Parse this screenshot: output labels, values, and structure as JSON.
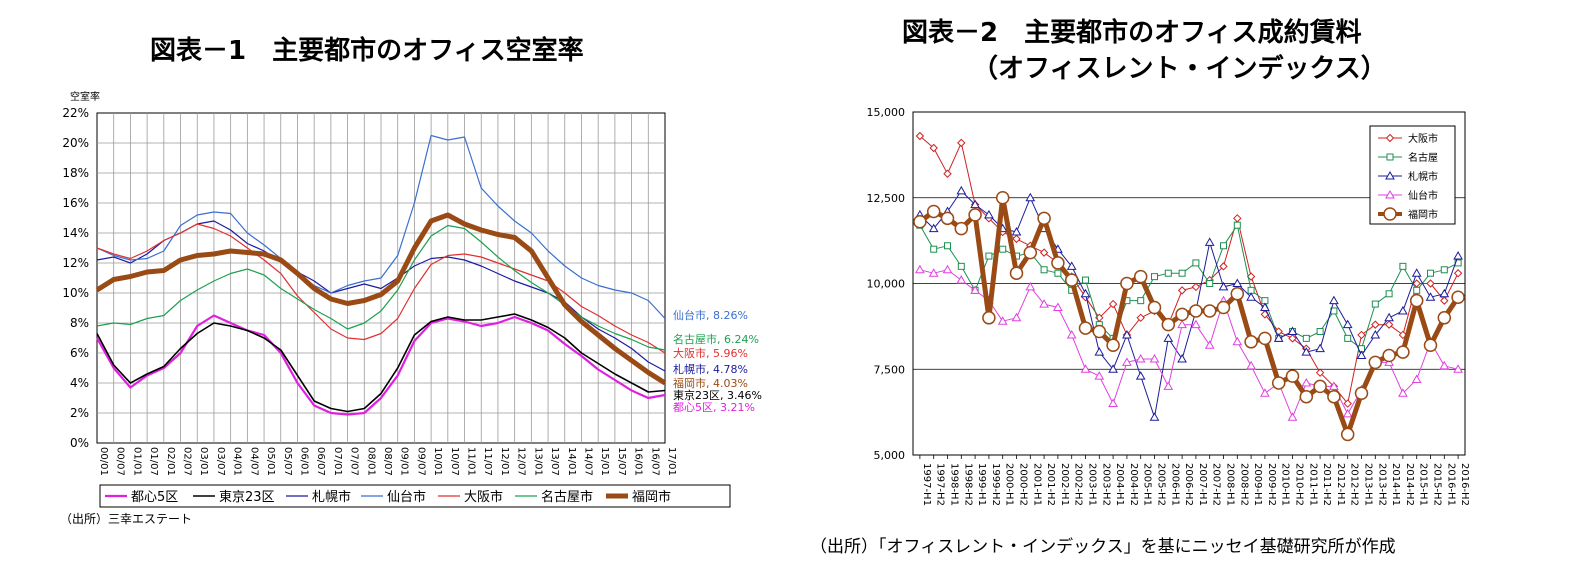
{
  "panel1": {
    "title": "図表－1　主要都市のオフィス空室率",
    "source": "（出所）三幸エステート",
    "chart_data": {
      "type": "line",
      "title": "図表－1　主要都市のオフィス空室率",
      "ylabel": "空室率",
      "ylim": [
        0,
        22
      ],
      "yticks": [
        "0%",
        "2%",
        "4%",
        "6%",
        "8%",
        "10%",
        "12%",
        "14%",
        "16%",
        "18%",
        "20%",
        "22%"
      ],
      "xticks": [
        "00/01",
        "00/07",
        "01/01",
        "01/07",
        "02/01",
        "02/07",
        "03/01",
        "03/07",
        "04/01",
        "04/07",
        "05/01",
        "05/07",
        "06/01",
        "06/07",
        "07/01",
        "07/07",
        "08/01",
        "08/07",
        "09/01",
        "09/07",
        "10/01",
        "10/07",
        "11/01",
        "11/07",
        "12/01",
        "12/07",
        "13/01",
        "13/07",
        "14/01",
        "14/07",
        "15/01",
        "15/07",
        "16/01",
        "16/07",
        "17/01"
      ],
      "x": [
        2000.0,
        2000.5,
        2001.0,
        2001.5,
        2002.0,
        2002.5,
        2003.0,
        2003.5,
        2004.0,
        2004.5,
        2005.0,
        2005.5,
        2006.0,
        2006.5,
        2007.0,
        2007.5,
        2008.0,
        2008.5,
        2009.0,
        2009.5,
        2010.0,
        2010.5,
        2011.0,
        2011.5,
        2012.0,
        2012.5,
        2013.0,
        2013.5,
        2014.0,
        2014.5,
        2015.0,
        2015.5,
        2016.0,
        2016.5,
        2017.0
      ],
      "grid": true,
      "legend": "bottom",
      "series": [
        {
          "name": "都心5区",
          "color": "#e020e0",
          "width": 2.2,
          "end_label": "都心5区, 3.21%",
          "values": [
            7.0,
            5.0,
            3.7,
            4.5,
            5.0,
            6.0,
            7.8,
            8.5,
            8.0,
            7.5,
            7.2,
            6.0,
            4.0,
            2.5,
            2.0,
            1.9,
            2.0,
            3.0,
            4.5,
            6.8,
            8.0,
            8.3,
            8.1,
            7.8,
            8.0,
            8.4,
            8.0,
            7.5,
            6.6,
            5.8,
            4.9,
            4.2,
            3.5,
            3.0,
            3.2
          ]
        },
        {
          "name": "東京23区",
          "color": "#000000",
          "width": 1.6,
          "end_label": "東京23区, 3.46%",
          "values": [
            7.3,
            5.2,
            4.0,
            4.6,
            5.1,
            6.3,
            7.3,
            8.0,
            7.8,
            7.5,
            7.0,
            6.2,
            4.5,
            2.8,
            2.3,
            2.1,
            2.3,
            3.3,
            5.0,
            7.2,
            8.1,
            8.4,
            8.2,
            8.2,
            8.4,
            8.6,
            8.2,
            7.7,
            7.0,
            6.0,
            5.3,
            4.6,
            4.0,
            3.4,
            3.5
          ]
        },
        {
          "name": "札幌市",
          "color": "#1c1ca0",
          "width": 1.2,
          "end_label": "札幌市, 4.78%",
          "values": [
            12.2,
            12.4,
            12.0,
            12.6,
            13.5,
            14.0,
            14.6,
            14.8,
            14.2,
            13.3,
            12.8,
            12.1,
            11.4,
            10.8,
            10.0,
            10.3,
            10.6,
            10.3,
            11.0,
            11.8,
            12.3,
            12.4,
            12.2,
            11.8,
            11.3,
            10.8,
            10.4,
            10.0,
            9.4,
            8.4,
            7.6,
            7.0,
            6.3,
            5.4,
            4.8
          ]
        },
        {
          "name": "仙台市",
          "color": "#3a6fd0",
          "width": 1.2,
          "end_label": "仙台市, 8.26%",
          "values": [
            13.0,
            12.5,
            12.2,
            12.3,
            12.8,
            14.5,
            15.2,
            15.4,
            15.3,
            14.0,
            13.2,
            12.3,
            11.2,
            10.5,
            10.0,
            10.5,
            10.8,
            11.0,
            12.5,
            16.0,
            20.5,
            20.2,
            20.4,
            17.0,
            15.8,
            14.8,
            14.0,
            12.8,
            11.8,
            11.0,
            10.5,
            10.2,
            10.0,
            9.5,
            8.3
          ]
        },
        {
          "name": "大阪市",
          "color": "#e03030",
          "width": 1.2,
          "end_label": "大阪市, 5.96%",
          "values": [
            13.0,
            12.6,
            12.3,
            12.8,
            13.5,
            14.0,
            14.6,
            14.3,
            13.8,
            13.0,
            12.2,
            11.3,
            9.8,
            8.7,
            7.6,
            7.0,
            6.9,
            7.3,
            8.3,
            10.3,
            11.9,
            12.5,
            12.6,
            12.4,
            12.0,
            11.6,
            11.2,
            10.8,
            10.0,
            9.1,
            8.5,
            7.8,
            7.2,
            6.7,
            6.0
          ]
        },
        {
          "name": "名古屋市",
          "color": "#1ea050",
          "width": 1.2,
          "end_label": "名古屋市, 6.24%",
          "values": [
            7.8,
            8.0,
            7.9,
            8.3,
            8.5,
            9.5,
            10.2,
            10.8,
            11.3,
            11.6,
            11.2,
            10.3,
            9.6,
            8.9,
            8.3,
            7.6,
            8.0,
            8.8,
            10.2,
            12.2,
            13.8,
            14.5,
            14.3,
            13.4,
            12.4,
            11.5,
            10.7,
            10.0,
            9.2,
            8.4,
            7.8,
            7.3,
            6.9,
            6.4,
            6.2
          ]
        },
        {
          "name": "福岡市",
          "color": "#9a4a14",
          "width": 5,
          "end_label": "福岡市, 4.03%",
          "values": [
            10.2,
            10.9,
            11.1,
            11.4,
            11.5,
            12.2,
            12.5,
            12.6,
            12.8,
            12.7,
            12.6,
            12.2,
            11.3,
            10.3,
            9.6,
            9.3,
            9.5,
            9.9,
            10.8,
            13.0,
            14.8,
            15.2,
            14.6,
            14.2,
            13.9,
            13.7,
            12.8,
            11.0,
            9.2,
            8.1,
            7.2,
            6.3,
            5.5,
            4.7,
            4.0
          ]
        }
      ]
    }
  },
  "panel2": {
    "title_line1": "図表－2　主要都市のオフィス成約賃料",
    "title_line2": "（オフィスレント・インデックス）",
    "source": "（出所）「オフィスレント・インデックス」を基にニッセイ基礎研究所が作成",
    "chart_data": {
      "type": "line",
      "title": "図表－2　主要都市のオフィス成約賃料（オフィスレント・インデックス）",
      "ylim": [
        5000,
        15000
      ],
      "yticks": [
        "5,000",
        "7,500",
        "10,000",
        "12,500",
        "15,000"
      ],
      "categories": [
        "1997-H1",
        "1997-H2",
        "1998-H1",
        "1998-H2",
        "1999-H1",
        "1999-H2",
        "2000-H1",
        "2000-H2",
        "2001-H1",
        "2001-H2",
        "2002-H1",
        "2002-H2",
        "2003-H1",
        "2003-H2",
        "2004-H1",
        "2004-H2",
        "2005-H1",
        "2005-H2",
        "2006-H1",
        "2006-H2",
        "2007-H1",
        "2007-H2",
        "2008-H1",
        "2008-H2",
        "2009-H1",
        "2009-H2",
        "2010-H1",
        "2010-H2",
        "2011-H1",
        "2011-H2",
        "2012-H1",
        "2012-H2",
        "2013-H1",
        "2013-H2",
        "2014-H1",
        "2014-H2",
        "2015-H1",
        "2015-H2",
        "2016-H1",
        "2016-H2"
      ],
      "grid": true,
      "legend": "top-right",
      "series": [
        {
          "name": "大阪市",
          "color": "#d02020",
          "width": 1,
          "marker": "diamond",
          "values": [
            14300,
            13950,
            13200,
            14100,
            12300,
            11900,
            11500,
            11300,
            11100,
            10900,
            10600,
            10200,
            9600,
            9000,
            9400,
            8500,
            9000,
            9200,
            8800,
            9800,
            9900,
            10100,
            10500,
            11900,
            10200,
            9100,
            8600,
            8400,
            8100,
            7400,
            7000,
            6500,
            8500,
            8800,
            8800,
            8500,
            10000,
            10000,
            9500,
            10300
          ]
        },
        {
          "name": "名古屋",
          "color": "#1c9050",
          "width": 1,
          "marker": "square",
          "values": [
            11700,
            11000,
            11100,
            10500,
            9800,
            10800,
            11000,
            10800,
            10900,
            10400,
            10300,
            9800,
            10100,
            8800,
            8400,
            9500,
            9500,
            10200,
            10300,
            10300,
            10600,
            10000,
            11100,
            11700,
            9800,
            9500,
            8400,
            8600,
            8400,
            8600,
            9200,
            8400,
            8100,
            9400,
            9700,
            10500,
            9800,
            10300,
            10400,
            10600
          ]
        },
        {
          "name": "札幌市",
          "color": "#1c1c9c",
          "width": 1,
          "marker": "triangle",
          "values": [
            12000,
            11600,
            12100,
            12700,
            12300,
            12000,
            11600,
            11500,
            12500,
            11600,
            11000,
            10500,
            9700,
            8000,
            7500,
            8500,
            7300,
            6100,
            8400,
            7800,
            9200,
            11200,
            9900,
            10000,
            9600,
            9300,
            8400,
            8600,
            8000,
            8100,
            9500,
            8800,
            7900,
            8500,
            9000,
            9200,
            10300,
            9600,
            9700,
            10800
          ]
        },
        {
          "name": "仙台市",
          "color": "#e040e0",
          "width": 1,
          "marker": "triangle",
          "values": [
            10400,
            10300,
            10400,
            10100,
            9800,
            9500,
            8900,
            9000,
            9900,
            9400,
            9300,
            8500,
            7500,
            7300,
            6500,
            7700,
            7800,
            7800,
            7000,
            8800,
            8800,
            8200,
            9500,
            8300,
            7600,
            6800,
            7100,
            6100,
            7100,
            7000,
            7000,
            6200,
            6900,
            7700,
            7700,
            6800,
            7200,
            8300,
            7600,
            7500
          ]
        },
        {
          "name": "福岡市",
          "color": "#9a4a14",
          "width": 5,
          "marker": "circle",
          "values": [
            11800,
            12100,
            11900,
            11600,
            12000,
            9000,
            12500,
            10300,
            10900,
            11900,
            10600,
            10100,
            8700,
            8600,
            8200,
            10000,
            10200,
            9300,
            8800,
            9100,
            9200,
            9200,
            9300,
            9700,
            8300,
            8400,
            7100,
            7300,
            6700,
            7000,
            6700,
            5600,
            6800,
            7700,
            7900,
            8000,
            9500,
            8200,
            9000,
            9600
          ]
        }
      ]
    }
  }
}
